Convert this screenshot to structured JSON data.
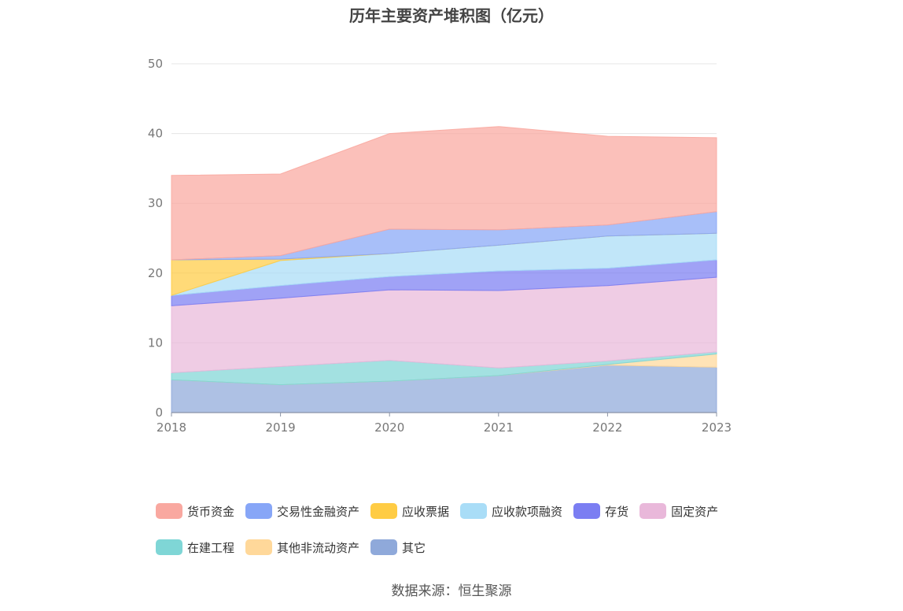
{
  "title": "历年主要资产堆积图（亿元）",
  "source": "数据来源：恒生聚源",
  "chart_data": {
    "type": "area",
    "stacked": true,
    "x": [
      "2018",
      "2019",
      "2020",
      "2021",
      "2022",
      "2023"
    ],
    "ylim": [
      0,
      50
    ],
    "yticks": [
      0,
      10,
      20,
      30,
      40,
      50
    ],
    "grid": true,
    "legend_position": "bottom",
    "series": [
      {
        "name": "其它",
        "color": "#8fa9da",
        "values": [
          4.7,
          4.0,
          4.5,
          5.3,
          6.8,
          6.5
        ]
      },
      {
        "name": "其他非流动资产",
        "color": "#ffd89a",
        "values": [
          0,
          0,
          0,
          0,
          0.1,
          1.9
        ]
      },
      {
        "name": "在建工程",
        "color": "#7fd6d6",
        "values": [
          1.0,
          2.6,
          3.0,
          1.1,
          0.5,
          0.3
        ]
      },
      {
        "name": "固定资产",
        "color": "#e9b8da",
        "values": [
          9.6,
          9.8,
          10.1,
          11.1,
          10.8,
          10.7
        ]
      },
      {
        "name": "存货",
        "color": "#7b7ef2",
        "values": [
          1.5,
          1.8,
          1.9,
          2.8,
          2.5,
          2.5
        ]
      },
      {
        "name": "应收款项融资",
        "color": "#a9ddf7",
        "values": [
          0,
          3.6,
          3.3,
          3.7,
          4.6,
          3.8
        ]
      },
      {
        "name": "应收票据",
        "color": "#ffcc44",
        "values": [
          5.1,
          0.2,
          0,
          0,
          0,
          0
        ]
      },
      {
        "name": "交易性金融资产",
        "color": "#87a6f7",
        "values": [
          0,
          0.5,
          3.5,
          2.2,
          1.6,
          3.1
        ]
      },
      {
        "name": "货币资金",
        "color": "#f9a8a0",
        "values": [
          12.1,
          11.7,
          13.7,
          14.8,
          12.7,
          10.6
        ]
      }
    ],
    "legend_order": [
      "货币资金",
      "交易性金融资产",
      "应收票据",
      "应收款项融资",
      "存货",
      "固定资产",
      "在建工程",
      "其他非流动资产",
      "其它"
    ]
  }
}
